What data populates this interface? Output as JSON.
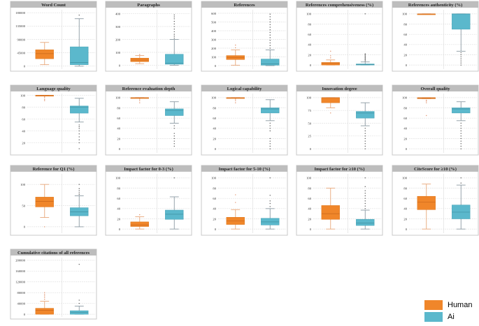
{
  "colors": {
    "human": "#F0862A",
    "ai": "#5BB8CC"
  },
  "legend": [
    {
      "label": "Human",
      "color": "#F0862A"
    },
    {
      "label": "Ai",
      "color": "#5BB8CC"
    }
  ],
  "chart_data": [
    {
      "type": "box",
      "title": "Word Count",
      "ticks": [
        0,
        45000,
        90000,
        135000,
        180000
      ],
      "ylim": [
        -10000,
        190000
      ],
      "series": [
        {
          "name": "Human",
          "q1": 25000,
          "median": 42000,
          "q3": 55000,
          "lo": 5000,
          "hi": 80000,
          "outliers": []
        },
        {
          "name": "Ai",
          "q1": 5000,
          "median": 12000,
          "q3": 65000,
          "lo": 0,
          "hi": 160000,
          "outliers": [
            172000
          ]
        }
      ]
    },
    {
      "type": "box",
      "title": "Paragraphs",
      "ticks": [
        0,
        100,
        200,
        300,
        400
      ],
      "ylim": [
        -30,
        430
      ],
      "series": [
        {
          "name": "Human",
          "q1": 28,
          "median": 40,
          "q3": 55,
          "lo": 12,
          "hi": 75,
          "outliers": [
            83
          ]
        },
        {
          "name": "Ai",
          "q1": 8,
          "median": 15,
          "q3": 85,
          "lo": 0,
          "hi": 200,
          "outliers": [
            210,
            225,
            240,
            260,
            280,
            300,
            320,
            340,
            360,
            375,
            390
          ]
        }
      ]
    },
    {
      "type": "box",
      "title": "References",
      "ticks": [
        0,
        100,
        200,
        300,
        400,
        500,
        600
      ],
      "ylim": [
        -40,
        640
      ],
      "series": [
        {
          "name": "Human",
          "q1": 70,
          "median": 95,
          "q3": 115,
          "lo": 5,
          "hi": 180,
          "outliers": [
            205,
            235
          ]
        },
        {
          "name": "Ai",
          "q1": 5,
          "median": 20,
          "q3": 75,
          "lo": 0,
          "hi": 180,
          "outliers": [
            200,
            230,
            260,
            290,
            320,
            350,
            380,
            410,
            440,
            470,
            500,
            530,
            560,
            590
          ]
        }
      ]
    },
    {
      "type": "box",
      "title": "References comprehensiveness (%)",
      "ticks": [
        0,
        20,
        40,
        60,
        80,
        100
      ],
      "ylim": [
        -8,
        108
      ],
      "series": [
        {
          "name": "Human",
          "q1": 0,
          "median": 3,
          "q3": 5,
          "lo": 0,
          "hi": 10,
          "outliers": [
            14,
            18,
            27
          ]
        },
        {
          "name": "Ai",
          "q1": 0,
          "median": 1,
          "q3": 2,
          "lo": 0,
          "hi": 6,
          "outliers": [
            8,
            10,
            12,
            14,
            16,
            18,
            20,
            22,
            100
          ]
        }
      ]
    },
    {
      "type": "box",
      "title": "References authenticity (%)",
      "ticks": [
        0,
        20,
        40,
        60,
        80,
        100
      ],
      "ylim": [
        -8,
        108
      ],
      "series": [
        {
          "name": "Human",
          "q1": 100,
          "median": 100,
          "q3": 100,
          "lo": 100,
          "hi": 100,
          "outliers": []
        },
        {
          "name": "Ai",
          "q1": 70,
          "median": 100,
          "q3": 100,
          "lo": 27,
          "hi": 100,
          "outliers": [
            24,
            20,
            16,
            12,
            8,
            4,
            0
          ]
        }
      ]
    },
    {
      "type": "box",
      "title": "Language quality",
      "ticks": [
        20,
        40,
        60,
        80,
        100
      ],
      "ylim": [
        3,
        103
      ],
      "series": [
        {
          "name": "Human",
          "q1": 100,
          "median": 100,
          "q3": 100,
          "lo": 100,
          "hi": 100,
          "outliers": [
            98,
            96,
            93,
            91
          ]
        },
        {
          "name": "Ai",
          "q1": 70,
          "median": 80,
          "q3": 82,
          "lo": 55,
          "hi": 95,
          "outliers": [
            50,
            47,
            44,
            40,
            35,
            30,
            25,
            20,
            10
          ]
        }
      ]
    },
    {
      "type": "box",
      "title": "Reference evaluation depth",
      "ticks": [
        0,
        20,
        40,
        60,
        80,
        100
      ],
      "ylim": [
        -8,
        108
      ],
      "series": [
        {
          "name": "Human",
          "q1": 100,
          "median": 100,
          "q3": 100,
          "lo": 100,
          "hi": 100,
          "outliers": [
            97,
            94,
            90
          ]
        },
        {
          "name": "Ai",
          "q1": 65,
          "median": 75,
          "q3": 78,
          "lo": 50,
          "hi": 92,
          "outliers": [
            45,
            40,
            30,
            25,
            20,
            15,
            10,
            5
          ]
        }
      ]
    },
    {
      "type": "box",
      "title": "Logical capability",
      "ticks": [
        0,
        20,
        40,
        60,
        80,
        100
      ],
      "ylim": [
        -8,
        108
      ],
      "series": [
        {
          "name": "Human",
          "q1": 100,
          "median": 100,
          "q3": 100,
          "lo": 100,
          "hi": 100,
          "outliers": [
            97,
            94,
            90
          ]
        },
        {
          "name": "Ai",
          "q1": 70,
          "median": 78,
          "q3": 80,
          "lo": 55,
          "hi": 96,
          "outliers": [
            50,
            45,
            40,
            35,
            20,
            15,
            10,
            5,
            0
          ]
        }
      ]
    },
    {
      "type": "box",
      "title": "Innovation degree",
      "ticks": [
        0,
        25,
        50,
        75,
        100
      ],
      "ylim": [
        -8,
        108
      ],
      "series": [
        {
          "name": "Human",
          "q1": 90,
          "median": 100,
          "q3": 100,
          "lo": 80,
          "hi": 100,
          "outliers": [
            70
          ]
        },
        {
          "name": "Ai",
          "q1": 60,
          "median": 70,
          "q3": 73,
          "lo": 45,
          "hi": 90,
          "outliers": [
            40,
            35,
            30,
            25,
            20,
            15,
            10,
            5,
            0
          ]
        }
      ]
    },
    {
      "type": "box",
      "title": "Overall quality",
      "ticks": [
        0,
        20,
        40,
        60,
        80,
        100
      ],
      "ylim": [
        -8,
        108
      ],
      "series": [
        {
          "name": "Human",
          "q1": 98,
          "median": 99,
          "q3": 100,
          "lo": 98,
          "hi": 100,
          "outliers": [
            95,
            93,
            90,
            65
          ]
        },
        {
          "name": "Ai",
          "q1": 70,
          "median": 78,
          "q3": 80,
          "lo": 55,
          "hi": 92,
          "outliers": [
            50,
            45,
            40,
            35,
            30,
            25,
            20,
            15,
            10,
            5,
            0
          ]
        }
      ]
    },
    {
      "type": "box",
      "title": "Reference for Q1 (%)",
      "ticks": [
        0,
        50,
        100
      ],
      "ylim": [
        -15,
        125
      ],
      "series": [
        {
          "name": "Human",
          "q1": 47,
          "median": 60,
          "q3": 70,
          "lo": 22,
          "hi": 100,
          "outliers": [
            0
          ]
        },
        {
          "name": "Ai",
          "q1": 26,
          "median": 35,
          "q3": 45,
          "lo": 0,
          "hi": 73,
          "outliers": [
            76,
            80,
            85,
            90,
            100
          ]
        }
      ]
    },
    {
      "type": "box",
      "title": "Impact factor for 0-3 (%)",
      "ticks": [
        0,
        20,
        40,
        60,
        80,
        100
      ],
      "ylim": [
        -8,
        108
      ],
      "series": [
        {
          "name": "Human",
          "q1": 5,
          "median": 8,
          "q3": 14,
          "lo": 0,
          "hi": 24,
          "outliers": [
            28
          ]
        },
        {
          "name": "Ai",
          "q1": 19,
          "median": 29,
          "q3": 37,
          "lo": 0,
          "hi": 63,
          "outliers": [
            100
          ]
        }
      ]
    },
    {
      "type": "box",
      "title": "Impact factor for 5-10 (%)",
      "ticks": [
        0,
        20,
        40,
        60,
        80,
        100
      ],
      "ylim": [
        -8,
        108
      ],
      "series": [
        {
          "name": "Human",
          "q1": 9,
          "median": 16,
          "q3": 23,
          "lo": 0,
          "hi": 38,
          "outliers": [
            52,
            67
          ]
        },
        {
          "name": "Ai",
          "q1": 8,
          "median": 14,
          "q3": 21,
          "lo": 0,
          "hi": 40,
          "outliers": [
            44,
            50,
            55,
            66,
            100
          ]
        }
      ]
    },
    {
      "type": "box",
      "title": "Impact factor for ≥10 (%)",
      "ticks": [
        0,
        20,
        40,
        60,
        80,
        100
      ],
      "ylim": [
        -8,
        108
      ],
      "series": [
        {
          "name": "Human",
          "q1": 19,
          "median": 30,
          "q3": 46,
          "lo": 0,
          "hi": 80,
          "outliers": []
        },
        {
          "name": "Ai",
          "q1": 7,
          "median": 12,
          "q3": 19,
          "lo": 0,
          "hi": 37,
          "outliers": [
            40,
            45,
            50,
            55,
            60,
            65,
            70,
            75,
            83,
            100
          ]
        }
      ]
    },
    {
      "type": "box",
      "title": "CiteScore for ≥10 (%)",
      "ticks": [
        0,
        20,
        40,
        60,
        80,
        100
      ],
      "ylim": [
        -8,
        108
      ],
      "series": [
        {
          "name": "Human",
          "q1": 38,
          "median": 53,
          "q3": 64,
          "lo": 0,
          "hi": 88,
          "outliers": []
        },
        {
          "name": "Ai",
          "q1": 20,
          "median": 33,
          "q3": 47,
          "lo": 0,
          "hi": 86,
          "outliers": [
            90,
            100
          ]
        }
      ]
    },
    {
      "type": "box",
      "title": "Cumulative citations of all references",
      "ticks": [
        0,
        40000,
        80000,
        120000,
        160000,
        200000
      ],
      "ylim": [
        -10000,
        210000
      ],
      "series": [
        {
          "name": "Human",
          "q1": 0,
          "median": 15000,
          "q3": 22000,
          "lo": 0,
          "hi": 48000,
          "outliers": [
            55000,
            62000,
            68000,
            74000,
            80000
          ]
        },
        {
          "name": "Ai",
          "q1": 0,
          "median": 7000,
          "q3": 13000,
          "lo": 0,
          "hi": 30000,
          "outliers": [
            40000,
            52000,
            185000
          ]
        }
      ]
    }
  ]
}
